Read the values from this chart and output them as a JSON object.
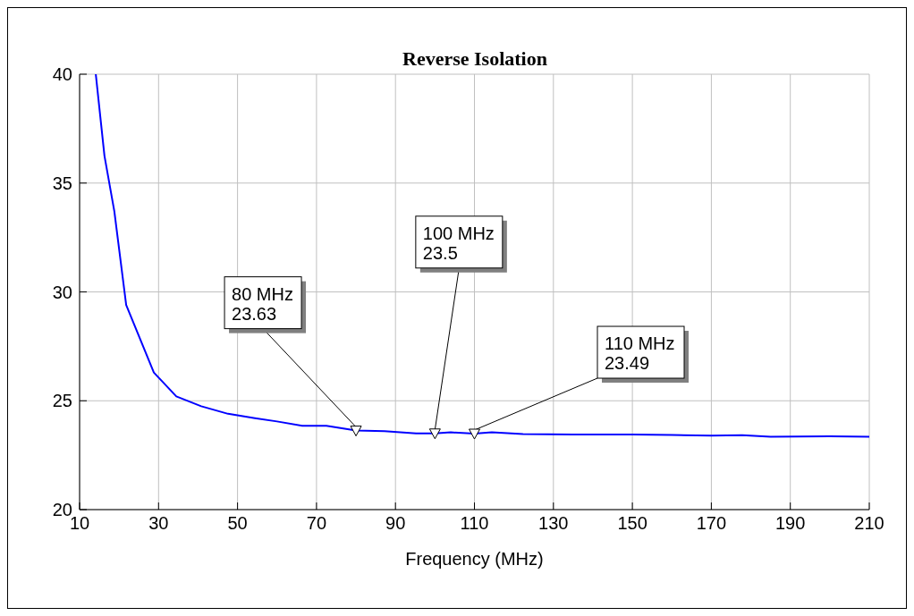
{
  "chart_data": {
    "type": "line",
    "title": "Reverse Isolation",
    "xlabel": "Frequency (MHz)",
    "x": [
      14.1,
      16.3,
      18.8,
      21.8,
      28.8,
      34.5,
      40.8,
      47.6,
      54.4,
      60,
      66.4,
      72.5,
      80,
      87.2,
      95.2,
      100,
      104,
      110,
      114.4,
      122.3,
      135,
      150,
      160,
      170,
      177.8,
      185,
      200,
      210
    ],
    "series": [
      {
        "color": "#0000ff",
        "values": [
          40,
          36.25,
          33.7,
          29.4,
          26.3,
          25.2,
          24.75,
          24.4,
          24.2,
          24.05,
          23.85,
          23.85,
          23.63,
          23.6,
          23.5,
          23.5,
          23.55,
          23.49,
          23.55,
          23.47,
          23.45,
          23.45,
          23.43,
          23.4,
          23.42,
          23.35,
          23.37,
          23.35
        ]
      }
    ],
    "xlim": [
      10,
      210
    ],
    "xticks": [
      10,
      30,
      50,
      70,
      90,
      110,
      130,
      150,
      170,
      190,
      210
    ],
    "ylim": [
      20,
      40
    ],
    "yticks": [
      20,
      25,
      30,
      35,
      40
    ],
    "grid": true,
    "marker": "none",
    "line_style": "solid",
    "annotations": [
      {
        "text": "80 MHz\n23.63",
        "x": 80,
        "y": 23.63
      },
      {
        "text": "100 MHz\n23.5",
        "x": 100,
        "y": 23.5
      },
      {
        "text": "110 MHz\n23.49",
        "x": 110,
        "y": 23.49
      }
    ]
  }
}
